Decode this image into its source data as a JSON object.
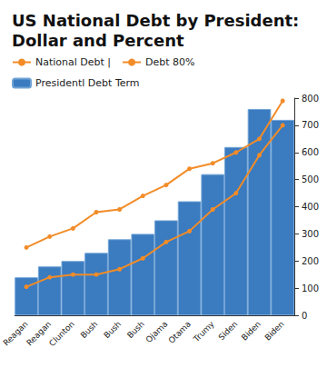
{
  "chart_data": {
    "type": "line",
    "title": "US National Debt by President: Dollar and Percent",
    "categories": [
      "Reagan",
      "Reagan",
      "Clunton",
      "Bush",
      "Bush",
      "Bush",
      "Ojama",
      "Otama",
      "Trumy",
      "Siden",
      "Biden",
      "Biden"
    ],
    "series": [
      {
        "name": "National Debt |",
        "type": "line",
        "color": "#f28c28",
        "marker": "circle",
        "values": [
          105,
          140,
          150,
          150,
          170,
          210,
          270,
          310,
          390,
          450,
          590,
          700
        ]
      },
      {
        "name": "Debt 80%",
        "type": "line",
        "color": "#f28c28",
        "marker": "circle",
        "values": [
          250,
          290,
          320,
          380,
          390,
          440,
          480,
          540,
          560,
          600,
          650,
          790
        ]
      },
      {
        "name": "Presidentl Debt Term",
        "type": "bar",
        "color": "#3b7bbf",
        "values": [
          140,
          180,
          200,
          230,
          280,
          300,
          350,
          420,
          520,
          620,
          760,
          720
        ]
      }
    ],
    "ylim": [
      0,
      800
    ],
    "yticks": [
      0,
      100,
      200,
      300,
      400,
      500,
      600,
      700,
      800
    ],
    "grid": false,
    "legend": "top-left"
  }
}
